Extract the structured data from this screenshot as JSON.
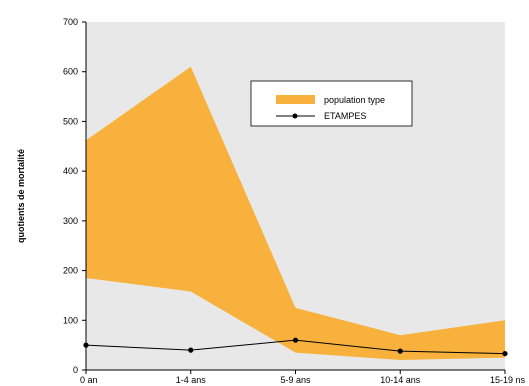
{
  "chart_data": {
    "type": "area",
    "categories": [
      "0 an",
      "1-4 ans",
      "5-9 ans",
      "10-14 ans",
      "15-19 ns"
    ],
    "ylabel": "quotients de mortalité",
    "ylim": [
      0,
      700
    ],
    "yticks": [
      "0",
      "100",
      "200",
      "300",
      "400",
      "500",
      "600",
      "700"
    ],
    "yticks_values": [
      0,
      100,
      200,
      300,
      400,
      500,
      600,
      700
    ],
    "band": {
      "name": "population type",
      "upper": [
        462,
        610,
        125,
        70,
        100
      ],
      "lower": [
        185,
        158,
        35,
        20,
        25
      ],
      "color": "#F7B13C"
    },
    "series": [
      {
        "name": "ETAMPES",
        "values": [
          50,
          40,
          60,
          38,
          33
        ],
        "color": "#000000"
      }
    ],
    "plot_background": "#E8E8E8",
    "legend_position": "top-right"
  }
}
